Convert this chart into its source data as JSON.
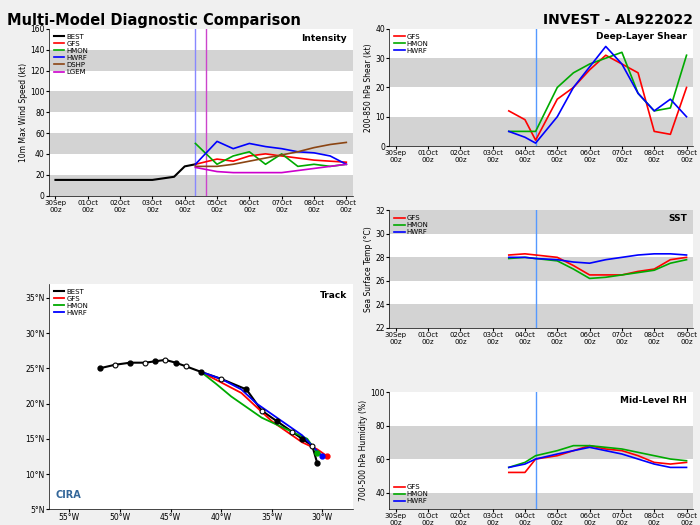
{
  "title_left": "Multi-Model Diagnostic Comparison",
  "title_right": "INVEST - AL922022",
  "intensity": {
    "ylabel": "10m Max Wind Speed (kt)",
    "ylim": [
      0,
      160
    ],
    "yticks": [
      0,
      20,
      40,
      60,
      80,
      100,
      120,
      140,
      160
    ],
    "label": "Intensity",
    "vline1_x": 4.33,
    "vline1_color": "#8888ff",
    "vline2_x": 4.67,
    "vline2_color": "#cc44cc",
    "best_x": [
      0,
      1,
      2,
      3,
      3.67,
      4.0,
      4.33
    ],
    "best_y": [
      15,
      15,
      15,
      15,
      18,
      28,
      30
    ],
    "gfs_x": [
      4.33,
      5.0,
      5.5,
      6.0,
      6.5,
      7.0,
      7.5,
      8.0,
      8.5,
      9.0
    ],
    "gfs_y": [
      30,
      35,
      33,
      38,
      40,
      38,
      36,
      34,
      33,
      32
    ],
    "hmon_x": [
      4.33,
      5.0,
      5.5,
      6.0,
      6.5,
      7.0,
      7.5,
      8.0,
      8.5,
      9.0
    ],
    "hmon_y": [
      50,
      30,
      38,
      42,
      30,
      40,
      28,
      30,
      28,
      30
    ],
    "hwrf_x": [
      4.33,
      5.0,
      5.5,
      6.0,
      6.5,
      7.0,
      7.5,
      8.0,
      8.5,
      9.0
    ],
    "hwrf_y": [
      30,
      52,
      45,
      50,
      47,
      45,
      42,
      41,
      38,
      30
    ],
    "dshp_x": [
      4.33,
      5.0,
      5.5,
      6.0,
      6.5,
      7.0,
      7.5,
      8.0,
      8.5,
      9.0
    ],
    "dshp_y": [
      28,
      28,
      30,
      33,
      36,
      39,
      42,
      46,
      49,
      51
    ],
    "lgem_x": [
      4.33,
      5.0,
      5.5,
      6.0,
      6.5,
      7.0,
      7.5,
      8.0,
      8.5,
      9.0
    ],
    "lgem_y": [
      27,
      23,
      22,
      22,
      22,
      22,
      24,
      26,
      28,
      30
    ]
  },
  "track": {
    "label": "Track",
    "xlim": [
      -57,
      -27
    ],
    "ylim": [
      5,
      37
    ],
    "xticks": [
      -55,
      -50,
      -45,
      -40,
      -35,
      -30
    ],
    "yticks": [
      5,
      10,
      15,
      20,
      25,
      30,
      35
    ],
    "best_lon": [
      -52.0,
      -50.5,
      -49.0,
      -47.5,
      -46.5,
      -45.5,
      -44.5,
      -43.5,
      -42.0,
      -40.0,
      -37.5,
      -36.0,
      -34.5,
      -33.0,
      -32.0,
      -31.0,
      -30.5
    ],
    "best_lat": [
      25.0,
      25.5,
      25.8,
      25.8,
      26.0,
      26.2,
      25.8,
      25.3,
      24.5,
      23.5,
      22.0,
      19.0,
      17.5,
      16.0,
      15.0,
      14.0,
      11.5
    ],
    "gfs_lon": [
      -42.0,
      -40.0,
      -38.0,
      -36.5,
      -35.0,
      -33.5,
      -32.0,
      -30.5,
      -29.5
    ],
    "gfs_lat": [
      24.5,
      23.0,
      21.5,
      19.5,
      17.5,
      16.0,
      14.5,
      13.5,
      12.5
    ],
    "hmon_lon": [
      -42.0,
      -40.5,
      -39.0,
      -37.5,
      -36.0,
      -34.5,
      -33.0,
      -31.5,
      -30.5
    ],
    "hmon_lat": [
      24.5,
      22.8,
      21.0,
      19.5,
      18.0,
      17.0,
      16.0,
      15.0,
      13.0
    ],
    "hwrf_lon": [
      -42.0,
      -40.0,
      -38.0,
      -36.5,
      -35.0,
      -33.5,
      -32.0,
      -31.0,
      -30.0
    ],
    "hwrf_lat": [
      24.5,
      23.5,
      22.0,
      20.0,
      18.5,
      17.0,
      15.5,
      14.0,
      12.5
    ]
  },
  "shear": {
    "ylabel": "200-850 hPa Shear (kt)",
    "ylim": [
      0,
      40
    ],
    "yticks": [
      0,
      10,
      20,
      30,
      40
    ],
    "label": "Deep-Layer Shear",
    "gfs_x": [
      3.5,
      4.0,
      4.33,
      5.0,
      5.5,
      6.0,
      6.5,
      7.0,
      7.5,
      8.0,
      8.5,
      9.0
    ],
    "gfs_y": [
      12,
      9,
      2,
      16,
      20,
      26,
      31,
      28,
      25,
      5,
      4,
      20
    ],
    "hmon_x": [
      3.5,
      4.0,
      4.33,
      5.0,
      5.5,
      6.0,
      6.5,
      7.0,
      7.5,
      8.0,
      8.5,
      9.0
    ],
    "hmon_y": [
      5,
      5,
      5,
      20,
      25,
      28,
      30,
      32,
      18,
      12,
      13,
      31
    ],
    "hwrf_x": [
      3.5,
      4.0,
      4.33,
      5.0,
      5.5,
      6.0,
      6.5,
      7.0,
      7.5,
      8.0,
      8.5,
      9.0
    ],
    "hwrf_y": [
      5,
      3,
      1,
      10,
      20,
      27,
      34,
      28,
      18,
      12,
      16,
      10
    ]
  },
  "sst": {
    "ylabel": "Sea Surface Temp (°C)",
    "ylim": [
      22,
      32
    ],
    "yticks": [
      22,
      24,
      26,
      28,
      30,
      32
    ],
    "label": "SST",
    "gfs_x": [
      3.5,
      4.0,
      4.33,
      5.0,
      5.5,
      6.0,
      6.5,
      7.0,
      7.5,
      8.0,
      8.5,
      9.0
    ],
    "gfs_y": [
      28.2,
      28.3,
      28.2,
      28.0,
      27.3,
      26.5,
      26.5,
      26.5,
      26.8,
      27.0,
      27.8,
      28.0
    ],
    "hmon_x": [
      3.5,
      4.0,
      4.33,
      5.0,
      5.5,
      6.0,
      6.5,
      7.0,
      7.5,
      8.0,
      8.5,
      9.0
    ],
    "hmon_y": [
      27.9,
      28.0,
      27.9,
      27.7,
      27.0,
      26.2,
      26.3,
      26.5,
      26.7,
      26.9,
      27.5,
      27.8
    ],
    "hwrf_x": [
      3.5,
      4.0,
      4.33,
      5.0,
      5.5,
      6.0,
      6.5,
      7.0,
      7.5,
      8.0,
      8.5,
      9.0
    ],
    "hwrf_y": [
      28.0,
      28.0,
      27.9,
      27.8,
      27.6,
      27.5,
      27.8,
      28.0,
      28.2,
      28.3,
      28.3,
      28.2
    ]
  },
  "rh": {
    "ylabel": "700-500 hPa Humidity (%)",
    "ylim": [
      30,
      100
    ],
    "yticks": [
      40,
      60,
      80,
      100
    ],
    "label": "Mid-Level RH",
    "gfs_x": [
      3.5,
      4.0,
      4.33,
      5.0,
      5.5,
      6.0,
      6.5,
      7.0,
      7.5,
      8.0,
      8.5,
      9.0
    ],
    "gfs_y": [
      52,
      52,
      60,
      62,
      65,
      68,
      66,
      65,
      62,
      58,
      57,
      58
    ],
    "hmon_x": [
      3.5,
      4.0,
      4.33,
      5.0,
      5.5,
      6.0,
      6.5,
      7.0,
      7.5,
      8.0,
      8.5,
      9.0
    ],
    "hmon_y": [
      55,
      58,
      62,
      65,
      68,
      68,
      67,
      66,
      64,
      62,
      60,
      59
    ],
    "hwrf_x": [
      3.5,
      4.0,
      4.33,
      5.0,
      5.5,
      6.0,
      6.5,
      7.0,
      7.5,
      8.0,
      8.5,
      9.0
    ],
    "hwrf_y": [
      55,
      57,
      60,
      63,
      65,
      67,
      65,
      63,
      60,
      57,
      55,
      55
    ]
  },
  "colors": {
    "BEST": "#000000",
    "GFS": "#ff0000",
    "HMON": "#00aa00",
    "HWRF": "#0000ff",
    "DSHP": "#8B4513",
    "LGEM": "#cc00cc"
  },
  "xtick_labels": [
    "30Sep\n00z",
    "01Oct\n00z",
    "02Oct\n00z",
    "03Oct\n00z",
    "04Oct\n00z",
    "05Oct\n00z",
    "06Oct\n00z",
    "07Oct\n00z",
    "08Oct\n00z",
    "09Oct\n00z"
  ],
  "xtick_pos": [
    0,
    1,
    2,
    3,
    4,
    5,
    6,
    7,
    8,
    9
  ],
  "vline_invest_x": 4.33,
  "vline_invest_color": "#5599ff"
}
